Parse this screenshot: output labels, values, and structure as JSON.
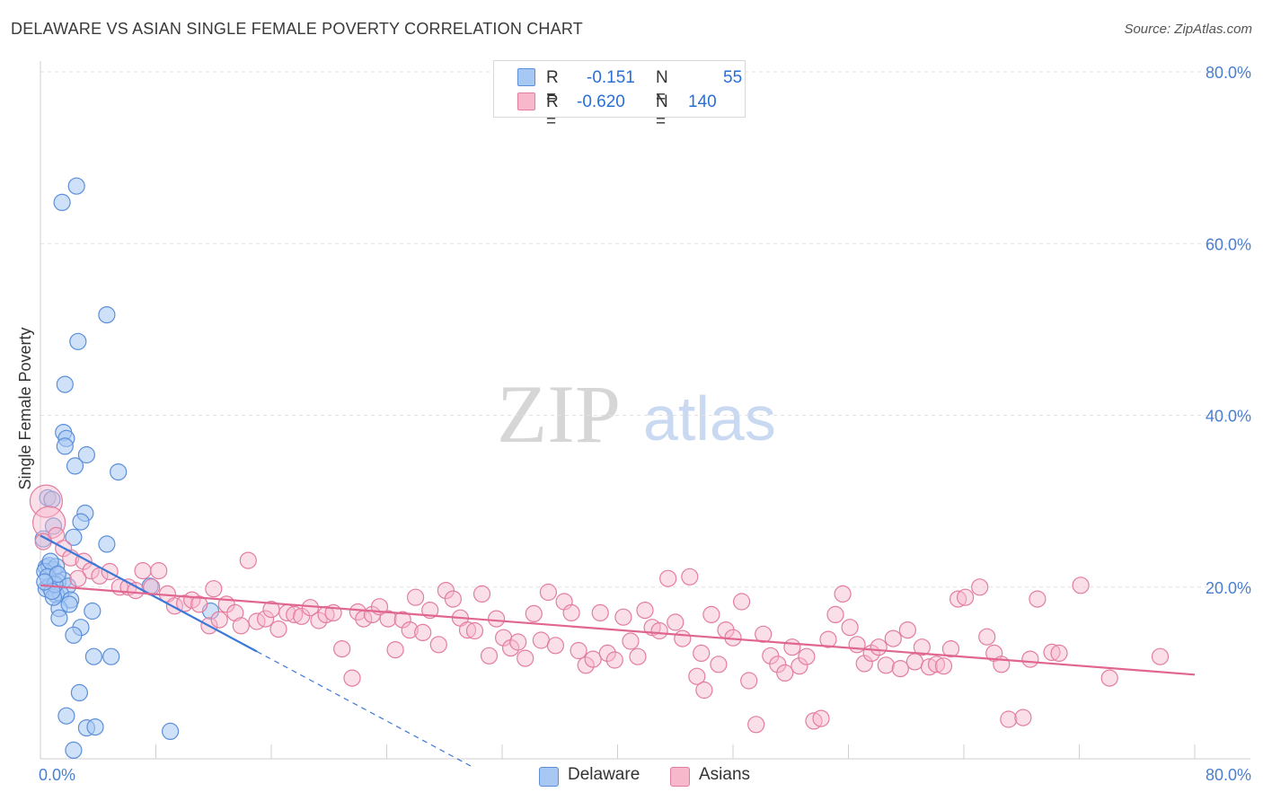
{
  "title": "DELAWARE VS ASIAN SINGLE FEMALE POVERTY CORRELATION CHART",
  "source": "Source: ZipAtlas.com",
  "watermark": {
    "zip": "ZIP",
    "atlas": "atlas"
  },
  "legend": {
    "r_label": "R =",
    "n_label": "N =",
    "series": [
      {
        "name": "Delaware",
        "r": "-0.151",
        "n": "55",
        "fill": "#a8c8f4",
        "stroke": "#5b8fd9"
      },
      {
        "name": "Asians",
        "r": "-0.620",
        "n": "140",
        "fill": "#f7b8cc",
        "stroke": "#e37da0"
      }
    ]
  },
  "chart_data": {
    "type": "scatter",
    "title": "DELAWARE VS ASIAN SINGLE FEMALE POVERTY CORRELATION CHART",
    "xlabel": "",
    "ylabel": "Single Female Poverty",
    "xlim": [
      0,
      80
    ],
    "ylim": [
      0,
      80
    ],
    "x_tick_labels": [
      "0.0%",
      "80.0%"
    ],
    "y_tick_labels": [
      "20.0%",
      "40.0%",
      "60.0%",
      "80.0%"
    ],
    "y_ticks": [
      20,
      40,
      60,
      80
    ],
    "grid": true,
    "legend_position": "top-center",
    "series": [
      {
        "name": "Delaware",
        "color": "#5b8fd9",
        "trend": {
          "x0": 0,
          "y0": 26.0,
          "x1": 15,
          "y1": 12.5,
          "dashed_to_x": 30,
          "dashed_to_y": -1.0
        },
        "points": [
          [
            2.5,
            66.7
          ],
          [
            1.5,
            64.8
          ],
          [
            4.6,
            51.7
          ],
          [
            2.6,
            48.6
          ],
          [
            1.7,
            43.6
          ],
          [
            1.6,
            38.0
          ],
          [
            1.8,
            37.3
          ],
          [
            1.7,
            36.4
          ],
          [
            3.2,
            35.4
          ],
          [
            2.4,
            34.1
          ],
          [
            5.4,
            33.4
          ],
          [
            0.5,
            30.4
          ],
          [
            0.8,
            30.2
          ],
          [
            3.1,
            28.6
          ],
          [
            0.9,
            27.1
          ],
          [
            2.8,
            27.6
          ],
          [
            2.3,
            25.8
          ],
          [
            0.2,
            25.6
          ],
          [
            4.6,
            25.0
          ],
          [
            0.4,
            22.3
          ],
          [
            0.6,
            22.5
          ],
          [
            0.9,
            22.0
          ],
          [
            1.1,
            22.4
          ],
          [
            0.3,
            21.8
          ],
          [
            1.6,
            20.8
          ],
          [
            1.2,
            20.6
          ],
          [
            0.6,
            20.1
          ],
          [
            1.9,
            20.1
          ],
          [
            0.4,
            19.8
          ],
          [
            7.6,
            20.1
          ],
          [
            1.1,
            19.1
          ],
          [
            1.4,
            19.2
          ],
          [
            2.1,
            18.5
          ],
          [
            1.3,
            17.5
          ],
          [
            2.0,
            18.0
          ],
          [
            0.9,
            18.8
          ],
          [
            3.6,
            17.2
          ],
          [
            11.8,
            17.2
          ],
          [
            1.3,
            16.4
          ],
          [
            2.8,
            15.3
          ],
          [
            2.3,
            14.4
          ],
          [
            3.7,
            11.9
          ],
          [
            4.9,
            11.9
          ],
          [
            2.7,
            7.7
          ],
          [
            1.8,
            5.0
          ],
          [
            3.2,
            3.6
          ],
          [
            3.8,
            3.7
          ],
          [
            9.0,
            3.2
          ],
          [
            2.3,
            1.0
          ],
          [
            0.7,
            23.0
          ],
          [
            0.5,
            21.2
          ],
          [
            1.0,
            20.3
          ],
          [
            0.8,
            19.5
          ],
          [
            1.2,
            21.5
          ],
          [
            0.3,
            20.6
          ]
        ]
      },
      {
        "name": "Asians",
        "color": "#e37da0",
        "trend": {
          "x0": 0,
          "y0": 20.2,
          "x1": 80,
          "y1": 9.8
        },
        "points": [
          [
            0.4,
            30.0
          ],
          [
            0.6,
            27.5
          ],
          [
            1.1,
            26.0
          ],
          [
            1.6,
            24.5
          ],
          [
            2.1,
            23.4
          ],
          [
            3.0,
            23.0
          ],
          [
            3.5,
            21.9
          ],
          [
            4.1,
            21.3
          ],
          [
            4.8,
            21.8
          ],
          [
            5.5,
            20.0
          ],
          [
            6.1,
            20.0
          ],
          [
            6.6,
            19.6
          ],
          [
            7.1,
            21.9
          ],
          [
            7.7,
            20.0
          ],
          [
            8.2,
            21.9
          ],
          [
            8.8,
            19.2
          ],
          [
            9.3,
            17.8
          ],
          [
            10.0,
            18.1
          ],
          [
            10.5,
            18.5
          ],
          [
            11.0,
            18.0
          ],
          [
            11.7,
            15.5
          ],
          [
            12.0,
            19.8
          ],
          [
            12.4,
            16.2
          ],
          [
            12.9,
            18.0
          ],
          [
            13.5,
            17.0
          ],
          [
            13.9,
            15.5
          ],
          [
            14.4,
            23.1
          ],
          [
            15.0,
            16.0
          ],
          [
            15.6,
            16.3
          ],
          [
            16.0,
            17.4
          ],
          [
            16.5,
            15.1
          ],
          [
            17.1,
            17.0
          ],
          [
            17.6,
            16.8
          ],
          [
            18.1,
            16.6
          ],
          [
            18.7,
            17.6
          ],
          [
            19.3,
            16.1
          ],
          [
            19.8,
            16.8
          ],
          [
            20.3,
            17.0
          ],
          [
            20.9,
            12.8
          ],
          [
            21.6,
            9.4
          ],
          [
            22.0,
            17.1
          ],
          [
            22.4,
            16.3
          ],
          [
            23.0,
            16.8
          ],
          [
            23.5,
            17.7
          ],
          [
            24.1,
            16.3
          ],
          [
            24.6,
            12.7
          ],
          [
            25.1,
            16.2
          ],
          [
            25.6,
            15.0
          ],
          [
            26.0,
            18.8
          ],
          [
            26.5,
            14.7
          ],
          [
            27.0,
            17.3
          ],
          [
            27.6,
            13.3
          ],
          [
            28.1,
            19.6
          ],
          [
            28.6,
            18.6
          ],
          [
            29.1,
            16.4
          ],
          [
            29.6,
            15.0
          ],
          [
            30.1,
            14.9
          ],
          [
            30.6,
            19.2
          ],
          [
            31.1,
            12.0
          ],
          [
            31.6,
            16.3
          ],
          [
            32.1,
            14.1
          ],
          [
            32.6,
            12.9
          ],
          [
            33.1,
            13.6
          ],
          [
            33.6,
            11.7
          ],
          [
            34.2,
            16.9
          ],
          [
            34.7,
            13.8
          ],
          [
            35.2,
            19.4
          ],
          [
            35.7,
            13.2
          ],
          [
            36.3,
            18.3
          ],
          [
            36.8,
            17.0
          ],
          [
            37.3,
            12.6
          ],
          [
            37.8,
            10.9
          ],
          [
            38.3,
            11.6
          ],
          [
            38.8,
            17.0
          ],
          [
            39.3,
            12.3
          ],
          [
            39.8,
            11.5
          ],
          [
            40.4,
            16.5
          ],
          [
            40.9,
            13.7
          ],
          [
            41.4,
            11.9
          ],
          [
            41.9,
            17.3
          ],
          [
            42.4,
            15.3
          ],
          [
            42.9,
            14.9
          ],
          [
            43.5,
            21.0
          ],
          [
            44.0,
            15.9
          ],
          [
            44.5,
            14.0
          ],
          [
            45.0,
            21.2
          ],
          [
            45.5,
            9.6
          ],
          [
            45.8,
            12.3
          ],
          [
            46.0,
            8.0
          ],
          [
            46.5,
            16.8
          ],
          [
            47.0,
            11.0
          ],
          [
            47.5,
            15.0
          ],
          [
            48.0,
            14.1
          ],
          [
            48.6,
            18.3
          ],
          [
            49.1,
            9.1
          ],
          [
            49.6,
            4.0
          ],
          [
            50.1,
            14.5
          ],
          [
            50.6,
            12.0
          ],
          [
            51.1,
            11.0
          ],
          [
            51.6,
            10.0
          ],
          [
            52.1,
            13.0
          ],
          [
            52.6,
            10.8
          ],
          [
            53.1,
            11.9
          ],
          [
            53.6,
            4.4
          ],
          [
            54.1,
            4.7
          ],
          [
            54.6,
            13.9
          ],
          [
            55.1,
            16.8
          ],
          [
            55.6,
            19.2
          ],
          [
            56.1,
            15.3
          ],
          [
            56.6,
            13.3
          ],
          [
            57.1,
            11.1
          ],
          [
            57.6,
            12.3
          ],
          [
            58.1,
            13.0
          ],
          [
            58.6,
            10.9
          ],
          [
            59.1,
            14.0
          ],
          [
            59.6,
            10.5
          ],
          [
            60.1,
            15.0
          ],
          [
            60.6,
            11.3
          ],
          [
            61.1,
            13.0
          ],
          [
            61.6,
            10.7
          ],
          [
            62.1,
            11.0
          ],
          [
            62.6,
            10.8
          ],
          [
            63.1,
            12.8
          ],
          [
            63.6,
            18.6
          ],
          [
            64.1,
            18.8
          ],
          [
            65.1,
            20.0
          ],
          [
            65.6,
            14.2
          ],
          [
            66.1,
            12.3
          ],
          [
            66.6,
            11.0
          ],
          [
            67.1,
            4.6
          ],
          [
            68.1,
            4.8
          ],
          [
            68.6,
            11.6
          ],
          [
            69.1,
            18.6
          ],
          [
            70.1,
            12.4
          ],
          [
            70.6,
            12.3
          ],
          [
            72.1,
            20.2
          ],
          [
            74.1,
            9.4
          ],
          [
            77.6,
            11.9
          ],
          [
            0.2,
            25.3
          ],
          [
            2.6,
            21.0
          ]
        ]
      }
    ]
  }
}
